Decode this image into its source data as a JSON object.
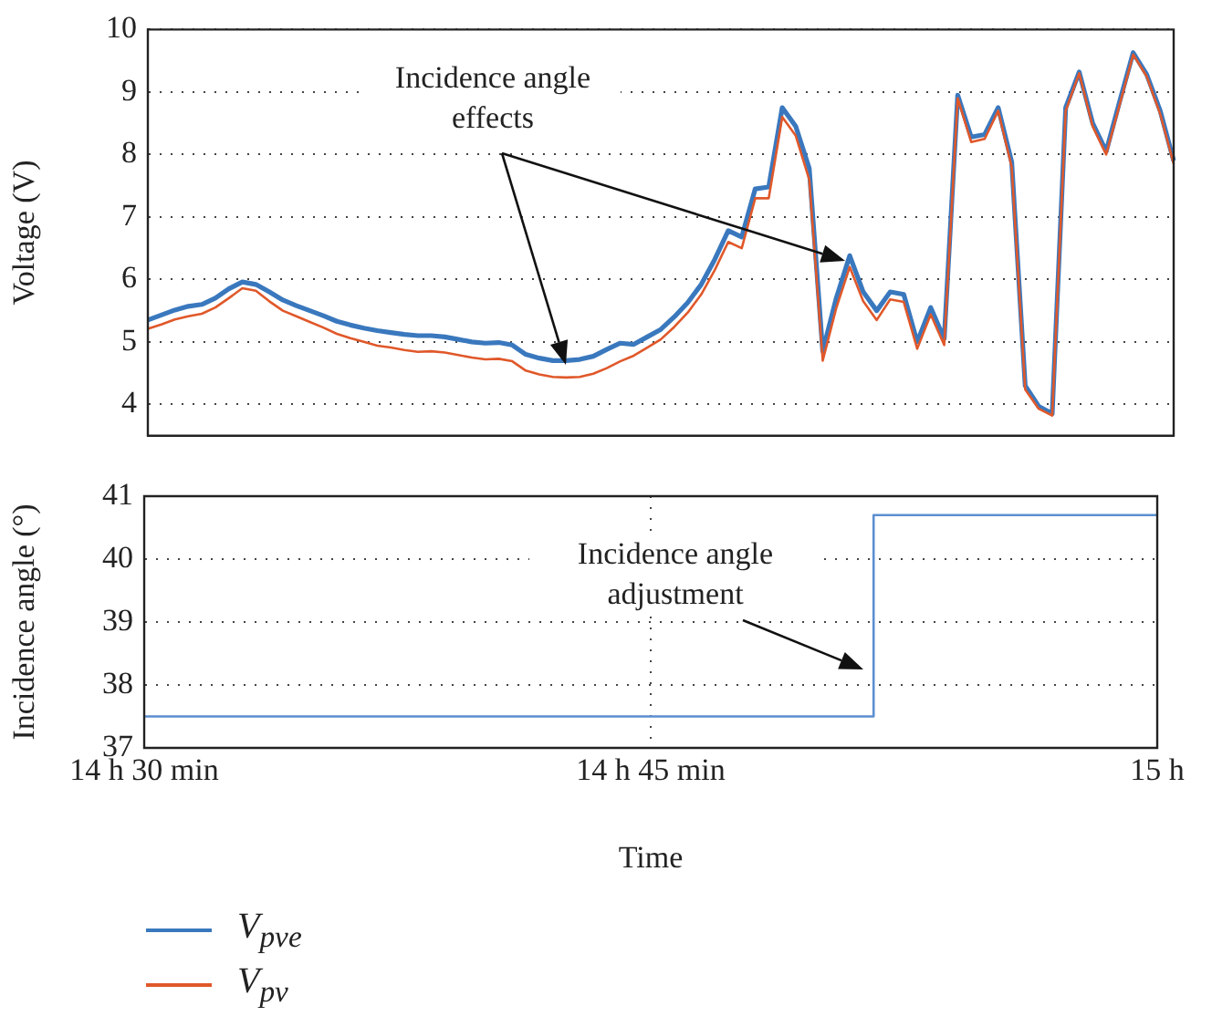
{
  "chart_data": [
    {
      "type": "line",
      "ylabel": "Voltage (V)",
      "categories": [
        null,
        null,
        null,
        null,
        null,
        null,
        null,
        null,
        null,
        null,
        null,
        null,
        null,
        null,
        null,
        null,
        null,
        null,
        null,
        null,
        null,
        null,
        null,
        null,
        null,
        null,
        null,
        null,
        null,
        null,
        null,
        null,
        null,
        null,
        null,
        null,
        null,
        null,
        null,
        null,
        null,
        null,
        null,
        null,
        null,
        null,
        null,
        null,
        null,
        null,
        null,
        null,
        null,
        null,
        null,
        null,
        null,
        null,
        null,
        null,
        null,
        null,
        null,
        null,
        null,
        null,
        null,
        null,
        null,
        null,
        null,
        null,
        null,
        null,
        null,
        null,
        null
      ],
      "ylim": [
        3.5,
        10
      ],
      "yticks": [
        4,
        5,
        6,
        7,
        8,
        9,
        10
      ],
      "grid": "y",
      "tick_labels": "y",
      "legend": "bottom",
      "annotations": [
        "Incidence angle effects"
      ],
      "series": [
        {
          "name": "V$_{pve}$",
          "color": "#3a78be",
          "values": [
            5.35,
            5.43,
            5.51,
            5.57,
            5.6,
            5.7,
            5.85,
            5.96,
            5.92,
            5.8,
            5.67,
            5.58,
            5.5,
            5.42,
            5.33,
            5.27,
            5.22,
            5.18,
            5.15,
            5.12,
            5.1,
            5.1,
            5.08,
            5.04,
            5.0,
            4.98,
            4.99,
            4.95,
            4.8,
            4.74,
            4.7,
            4.7,
            4.72,
            4.77,
            4.88,
            4.98,
            4.96,
            5.08,
            5.2,
            5.4,
            5.63,
            5.92,
            6.32,
            6.78,
            6.68,
            7.45,
            7.48,
            8.75,
            8.45,
            7.78,
            4.85,
            5.7,
            6.38,
            5.8,
            5.5,
            5.8,
            5.76,
            5.0,
            5.55,
            5.05,
            8.95,
            8.28,
            8.32,
            8.75,
            7.88,
            4.3,
            3.97,
            3.85,
            8.75,
            9.32,
            8.5,
            8.05,
            8.85,
            9.63,
            9.28,
            8.7,
            7.9
          ]
        },
        {
          "name": "V$_{pv}$",
          "color": "#e0582a",
          "values": [
            5.21,
            5.28,
            5.36,
            5.41,
            5.45,
            5.55,
            5.7,
            5.86,
            5.82,
            5.65,
            5.5,
            5.41,
            5.32,
            5.23,
            5.13,
            5.06,
            5.0,
            4.94,
            4.91,
            4.87,
            4.84,
            4.85,
            4.83,
            4.79,
            4.75,
            4.72,
            4.73,
            4.69,
            4.54,
            4.48,
            4.44,
            4.43,
            4.44,
            4.49,
            4.58,
            4.69,
            4.78,
            4.91,
            5.04,
            5.24,
            5.47,
            5.76,
            6.15,
            6.6,
            6.5,
            7.3,
            7.3,
            8.6,
            8.3,
            7.6,
            4.7,
            5.54,
            6.2,
            5.65,
            5.35,
            5.68,
            5.64,
            4.89,
            5.44,
            4.95,
            8.9,
            8.2,
            8.25,
            8.7,
            7.8,
            4.24,
            3.93,
            3.82,
            8.7,
            9.3,
            8.45,
            8.0,
            8.8,
            9.6,
            9.25,
            8.65,
            7.85
          ]
        }
      ]
    },
    {
      "type": "step",
      "xlabel": "Time",
      "ylabel": "Incidence angle (°)",
      "categories": [
        "14 h 30 min",
        null,
        null,
        null,
        null,
        null,
        null,
        null,
        null,
        null,
        null,
        null,
        null,
        null,
        null,
        null,
        null,
        null,
        null,
        null,
        null,
        null,
        null,
        null,
        null,
        null,
        null,
        null,
        null,
        null,
        null,
        null,
        null,
        null,
        null,
        null,
        null,
        null,
        null,
        null,
        null,
        null,
        null,
        null,
        null,
        null,
        null,
        null,
        null,
        null,
        "14 h 45 min",
        null,
        null,
        null,
        null,
        null,
        null,
        null,
        null,
        null,
        null,
        null,
        null,
        null,
        null,
        null,
        null,
        null,
        null,
        null,
        null,
        null,
        null,
        null,
        null,
        null,
        null,
        null,
        null,
        null,
        null,
        null,
        null,
        null,
        null,
        null,
        null,
        null,
        null,
        null,
        null,
        null,
        null,
        null,
        null,
        null,
        null,
        null,
        null,
        null,
        "15 h"
      ],
      "ylim": [
        37,
        41
      ],
      "yticks": [
        37,
        38,
        39,
        40,
        41
      ],
      "grid": true,
      "annotations": [
        "Incidence angle adjustment"
      ],
      "series": [
        {
          "color": "#5b8fd0",
          "values": [
            37.5,
            37.5,
            37.5,
            37.5,
            37.5,
            37.5,
            37.5,
            37.5,
            37.5,
            37.5,
            37.5,
            37.5,
            37.5,
            37.5,
            37.5,
            37.5,
            37.5,
            37.5,
            37.5,
            37.5,
            37.5,
            37.5,
            37.5,
            37.5,
            37.5,
            37.5,
            37.5,
            37.5,
            37.5,
            37.5,
            37.5,
            37.5,
            37.5,
            37.5,
            37.5,
            37.5,
            37.5,
            37.5,
            37.5,
            37.5,
            37.5,
            37.5,
            37.5,
            37.5,
            37.5,
            37.5,
            37.5,
            37.5,
            37.5,
            37.5,
            37.5,
            37.5,
            37.5,
            37.5,
            37.5,
            37.5,
            37.5,
            37.5,
            37.5,
            37.5,
            37.5,
            37.5,
            37.5,
            37.5,
            37.5,
            37.5,
            37.5,
            37.5,
            37.5,
            37.5,
            37.5,
            37.5,
            40.7,
            40.7,
            40.7,
            40.7,
            40.7,
            40.7,
            40.7,
            40.7,
            40.7,
            40.7,
            40.7,
            40.7,
            40.7,
            40.7,
            40.7,
            40.7,
            40.7,
            40.7,
            40.7,
            40.7,
            40.7,
            40.7,
            40.7,
            40.7,
            40.7,
            40.7,
            40.7,
            40.7,
            40.7
          ]
        }
      ]
    }
  ]
}
